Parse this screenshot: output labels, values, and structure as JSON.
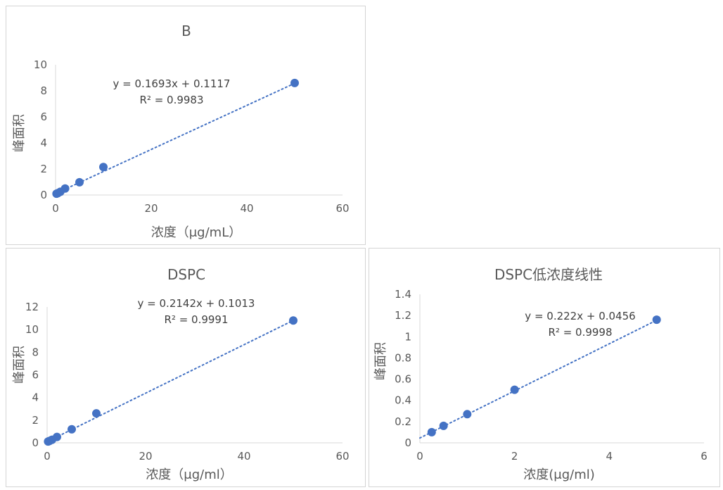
{
  "chart_data": [
    {
      "type": "scatter",
      "title": "B",
      "xlabel": "浓度（μg/mL）",
      "ylabel": "峰面积",
      "xlim": [
        0,
        60
      ],
      "ylim": [
        0,
        10
      ],
      "xticks": [
        "0",
        "20",
        "40",
        "60"
      ],
      "yticks": [
        "0",
        "2",
        "4",
        "6",
        "8",
        "10"
      ],
      "points": [
        {
          "x": 0.2,
          "y": 0.1
        },
        {
          "x": 0.5,
          "y": 0.15
        },
        {
          "x": 1,
          "y": 0.25
        },
        {
          "x": 2,
          "y": 0.5
        },
        {
          "x": 5,
          "y": 0.98
        },
        {
          "x": 10,
          "y": 2.15
        },
        {
          "x": 50,
          "y": 8.6
        }
      ],
      "trendline": {
        "slope": 0.1693,
        "intercept": 0.1117,
        "style": "dotted"
      },
      "equation": "y = 0.1693x + 0.1117",
      "r2": "R² = 0.9983",
      "grid": false,
      "color": "#4472c4"
    },
    {
      "type": "scatter",
      "title": "DSPC",
      "xlabel": "浓度（μg/ml）",
      "ylabel": "峰面积",
      "xlim": [
        0,
        60
      ],
      "ylim": [
        0,
        12
      ],
      "xticks": [
        "0",
        "20",
        "40",
        "60"
      ],
      "yticks": [
        "0",
        "2",
        "4",
        "6",
        "8",
        "10",
        "12"
      ],
      "points": [
        {
          "x": 0.2,
          "y": 0.12
        },
        {
          "x": 0.5,
          "y": 0.17
        },
        {
          "x": 1,
          "y": 0.27
        },
        {
          "x": 2,
          "y": 0.52
        },
        {
          "x": 5,
          "y": 1.2
        },
        {
          "x": 10,
          "y": 2.6
        },
        {
          "x": 50,
          "y": 10.8
        }
      ],
      "trendline": {
        "slope": 0.2142,
        "intercept": 0.1013,
        "style": "dotted"
      },
      "equation": "y = 0.2142x + 0.1013",
      "r2": "R² = 0.9991",
      "grid": false,
      "color": "#4472c4"
    },
    {
      "type": "scatter",
      "title": "DSPC低浓度线性",
      "xlabel": "浓度(μg/ml)",
      "ylabel": "峰面积",
      "xlim": [
        0,
        6
      ],
      "ylim": [
        0,
        1.4
      ],
      "xticks": [
        "0",
        "2",
        "4",
        "6"
      ],
      "yticks": [
        "0",
        "0.2",
        "0.4",
        "0.6",
        "0.8",
        "1",
        "1.2",
        "1.4"
      ],
      "points": [
        {
          "x": 0.25,
          "y": 0.1
        },
        {
          "x": 0.5,
          "y": 0.16
        },
        {
          "x": 1,
          "y": 0.27
        },
        {
          "x": 2,
          "y": 0.5
        },
        {
          "x": 5,
          "y": 1.16
        }
      ],
      "trendline": {
        "slope": 0.222,
        "intercept": 0.0456,
        "style": "dotted"
      },
      "equation": "y = 0.222x + 0.0456",
      "r2": "R² = 0.9998",
      "grid": false,
      "color": "#4472c4"
    }
  ]
}
